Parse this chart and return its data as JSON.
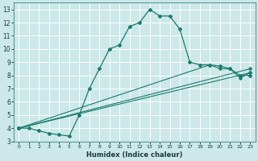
{
  "xlabel": "Humidex (Indice chaleur)",
  "background_color": "#cce8e8",
  "grid_color": "#ffffff",
  "line_color": "#1a7a6e",
  "xlim": [
    -0.5,
    23.5
  ],
  "ylim": [
    3,
    13.5
  ],
  "xticks": [
    0,
    1,
    2,
    3,
    4,
    5,
    6,
    7,
    8,
    9,
    10,
    11,
    12,
    13,
    14,
    15,
    16,
    17,
    18,
    19,
    20,
    21,
    22,
    23
  ],
  "yticks": [
    3,
    4,
    5,
    6,
    7,
    8,
    9,
    10,
    11,
    12,
    13
  ],
  "curves": [
    {
      "x": [
        0,
        1,
        2,
        3,
        4,
        5,
        6,
        7,
        8,
        9,
        10,
        11,
        12,
        13,
        14,
        15,
        16,
        17,
        18,
        19,
        20,
        21,
        22,
        23
      ],
      "y": [
        4,
        4,
        3.8,
        3.6,
        3.5,
        3.4,
        5,
        7,
        8.5,
        10,
        10.3,
        11.7,
        12,
        13,
        12.5,
        12.5,
        11.5,
        9,
        8.8,
        8.8,
        8.7,
        8.5,
        8,
        8
      ]
    },
    {
      "x": [
        0,
        23
      ],
      "y": [
        4,
        8.2
      ]
    },
    {
      "x": [
        0,
        23
      ],
      "y": [
        4,
        8.5
      ]
    },
    {
      "x": [
        0,
        19,
        20,
        21,
        22,
        23
      ],
      "y": [
        4,
        8.8,
        8.5,
        8.5,
        7.8,
        8.2
      ]
    }
  ]
}
